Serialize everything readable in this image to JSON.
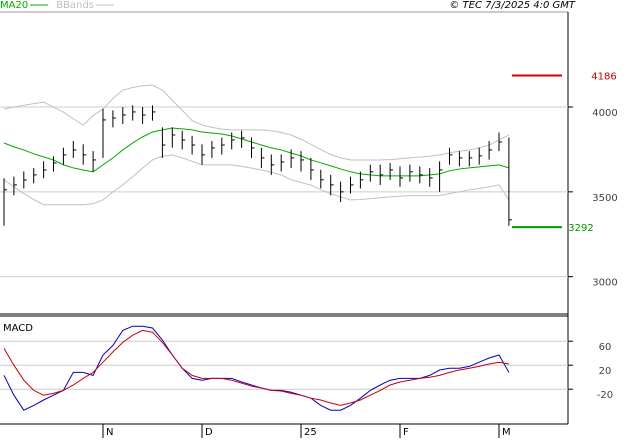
{
  "chart_data": [
    {
      "type": "ohlc",
      "title": "© TEC 7/3/2025 4:0 GMT",
      "categories": [
        null,
        null,
        null,
        null,
        null,
        null,
        null,
        null,
        null,
        null,
        "N",
        null,
        null,
        null,
        null,
        null,
        null,
        null,
        null,
        null,
        "D",
        null,
        null,
        null,
        null,
        null,
        null,
        null,
        null,
        null,
        "25",
        null,
        null,
        null,
        null,
        null,
        null,
        null,
        null,
        null,
        "F",
        null,
        null,
        null,
        null,
        null,
        null,
        null,
        null,
        null,
        "M",
        null
      ],
      "high": [
        3580,
        3590,
        3620,
        3640,
        3680,
        3710,
        3760,
        3800,
        3780,
        3740,
        3990,
        3980,
        4000,
        4010,
        4000,
        4010,
        3880,
        3880,
        3860,
        3830,
        3780,
        3800,
        3820,
        3850,
        3860,
        3820,
        3760,
        3720,
        3720,
        3750,
        3740,
        3700,
        3630,
        3600,
        3560,
        3590,
        3620,
        3660,
        3660,
        3670,
        3650,
        3660,
        3650,
        3640,
        3680,
        3760,
        3740,
        3740,
        3760,
        3800,
        3850,
        3820
      ],
      "low": [
        3300,
        3480,
        3520,
        3550,
        3580,
        3620,
        3660,
        3700,
        3660,
        3620,
        3700,
        3880,
        3900,
        3920,
        3900,
        3920,
        3700,
        3760,
        3750,
        3720,
        3660,
        3700,
        3720,
        3750,
        3760,
        3700,
        3640,
        3600,
        3620,
        3640,
        3620,
        3570,
        3520,
        3480,
        3440,
        3490,
        3520,
        3560,
        3540,
        3570,
        3530,
        3560,
        3550,
        3530,
        3500,
        3660,
        3650,
        3650,
        3660,
        3690,
        3740,
        3300
      ],
      "close": [
        3512,
        3541,
        3570,
        3600,
        3629,
        3670,
        3718,
        3747,
        3718,
        3688,
        3924,
        3935,
        3953,
        3971,
        3953,
        3971,
        3776,
        3835,
        3806,
        3776,
        3718,
        3759,
        3776,
        3806,
        3818,
        3759,
        3700,
        3659,
        3676,
        3700,
        3688,
        3629,
        3571,
        3541,
        3500,
        3541,
        3571,
        3618,
        3600,
        3629,
        3582,
        3618,
        3600,
        3582,
        3629,
        3718,
        3700,
        3700,
        3712,
        3747,
        3794,
        3335
      ],
      "bar_color": "#000000",
      "series": [
        {
          "name": "MA20",
          "color": "#00aa00",
          "values": [
            3788,
            3765,
            3747,
            3724,
            3706,
            3688,
            3659,
            3641,
            3629,
            3618,
            3659,
            3700,
            3747,
            3788,
            3824,
            3853,
            3865,
            3876,
            3871,
            3865,
            3853,
            3847,
            3841,
            3829,
            3812,
            3794,
            3776,
            3759,
            3747,
            3729,
            3712,
            3688,
            3671,
            3653,
            3635,
            3618,
            3606,
            3600,
            3594,
            3594,
            3594,
            3594,
            3594,
            3600,
            3606,
            3624,
            3635,
            3641,
            3647,
            3653,
            3659,
            3641
          ]
        },
        {
          "name": "BBands",
          "color": "#c0c0c0",
          "upper": [
            3988,
            4000,
            4010,
            4020,
            4029,
            4000,
            3970,
            3930,
            3894,
            3950,
            3988,
            4050,
            4100,
            4115,
            4125,
            4129,
            4100,
            4040,
            3980,
            3920,
            3894,
            3880,
            3870,
            3865,
            3865,
            3865,
            3865,
            3860,
            3850,
            3835,
            3810,
            3780,
            3750,
            3720,
            3700,
            3688,
            3688,
            3688,
            3688,
            3690,
            3695,
            3700,
            3705,
            3710,
            3718,
            3730,
            3740,
            3747,
            3760,
            3775,
            3806,
            3835
          ],
          "lower": [
            3571,
            3530,
            3490,
            3455,
            3424,
            3424,
            3424,
            3424,
            3424,
            3430,
            3453,
            3500,
            3541,
            3590,
            3640,
            3688,
            3710,
            3718,
            3700,
            3680,
            3659,
            3659,
            3659,
            3659,
            3650,
            3640,
            3629,
            3615,
            3600,
            3571,
            3555,
            3540,
            3512,
            3490,
            3470,
            3453,
            3455,
            3460,
            3465,
            3470,
            3475,
            3478,
            3478,
            3478,
            3478,
            3490,
            3500,
            3512,
            3520,
            3530,
            3541,
            3453
          ]
        }
      ],
      "levels": [
        {
          "value": 4186,
          "color": "#cc0000"
        },
        {
          "value": 3292,
          "color": "#009900"
        }
      ],
      "ylim": [
        2780,
        4560
      ],
      "yticks": [
        3000,
        3500,
        4000
      ],
      "grid": true
    },
    {
      "type": "line",
      "title": "MACD",
      "series": [
        {
          "color": "#0000cc",
          "values": [
            3,
            -30,
            -55,
            -47,
            -38,
            -30,
            -22,
            8,
            8,
            3,
            37,
            53,
            78,
            85,
            85,
            82,
            62,
            37,
            15,
            -2,
            -5,
            -2,
            -2,
            -2,
            -8,
            -13,
            -18,
            -22,
            -22,
            -25,
            -30,
            -35,
            -47,
            -55,
            -55,
            -47,
            -35,
            -22,
            -13,
            -5,
            -2,
            -2,
            -2,
            3,
            12,
            15,
            15,
            18,
            25,
            32,
            37,
            8
          ]
        },
        {
          "color": "#cc0000",
          "values": [
            48,
            20,
            -5,
            -22,
            -30,
            -27,
            -22,
            -13,
            -2,
            8,
            25,
            42,
            58,
            70,
            78,
            75,
            58,
            37,
            15,
            3,
            -2,
            -2,
            -2,
            -5,
            -10,
            -15,
            -18,
            -22,
            -23,
            -27,
            -30,
            -35,
            -38,
            -43,
            -47,
            -43,
            -38,
            -30,
            -22,
            -13,
            -8,
            -5,
            -2,
            0,
            3,
            8,
            12,
            15,
            18,
            22,
            25,
            22
          ]
        }
      ],
      "ylim": [
        -78,
        102
      ],
      "yticks": [
        60,
        20,
        -20
      ],
      "grid": true
    }
  ]
}
